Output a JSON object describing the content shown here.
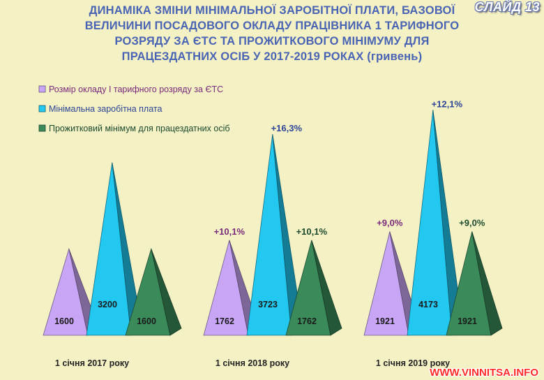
{
  "slide_label": "СЛАЙД 13",
  "watermark": "WWW.VINNITSA.INFO",
  "colors": {
    "background": "#f4f1c5",
    "title": "#4a64b4",
    "series_tariff": "#c9a5f5",
    "series_min_wage": "#22c8f0",
    "series_subsistence": "#3a8a5a",
    "label_blue": "#2d4596",
    "label_purple": "#7a2a7a",
    "label_green": "#1d4a2d"
  },
  "chart_data": {
    "type": "pyramid-bar",
    "title": "ДИНАМІКА ЗМІНИ МІНІМАЛЬНОЇ ЗАРОБІТНОЇ ПЛАТИ, БАЗОВОЇ ВЕЛИЧИНИ ПОСАДОВОГО ОКЛАДУ ПРАЦІВНИКА 1 ТАРИФНОГО РОЗРЯДУ ЗА ЄТС ТА ПРОЖИТКОВОГО МІНІМУМУ ДЛЯ ПРАЦЕЗДАТНИХ ОСІБ У 2017-2019 РОКАХ (гривень)",
    "categories": [
      "1 січня 2017 року",
      "1 січня 2018 року",
      "1 січня 2019 року"
    ],
    "legend_position": "top-left",
    "series": [
      {
        "name": "Розмір окладу І тарифного розряду за ЄТС",
        "color_key": "series_tariff",
        "values": [
          1600,
          1762,
          1921
        ],
        "value_labels": [
          "1600",
          "1762",
          "1921"
        ],
        "change_labels": [
          "",
          "+10,1%",
          "+9,0%"
        ]
      },
      {
        "name": "Мінімальна заробітна плата",
        "color_key": "series_min_wage",
        "values": [
          3200,
          3723,
          4173
        ],
        "value_labels": [
          "3200",
          "3723",
          "4173"
        ],
        "change_labels": [
          "",
          "+16,3%",
          "+12,1%"
        ]
      },
      {
        "name": "Прожитковий мінімум для працездатних осіб",
        "color_key": "series_subsistence",
        "values": [
          1600,
          1762,
          1921
        ],
        "value_labels": [
          "1600",
          "1762",
          "1921"
        ],
        "change_labels": [
          "",
          "+10,1%",
          "+9,0%"
        ]
      }
    ]
  }
}
